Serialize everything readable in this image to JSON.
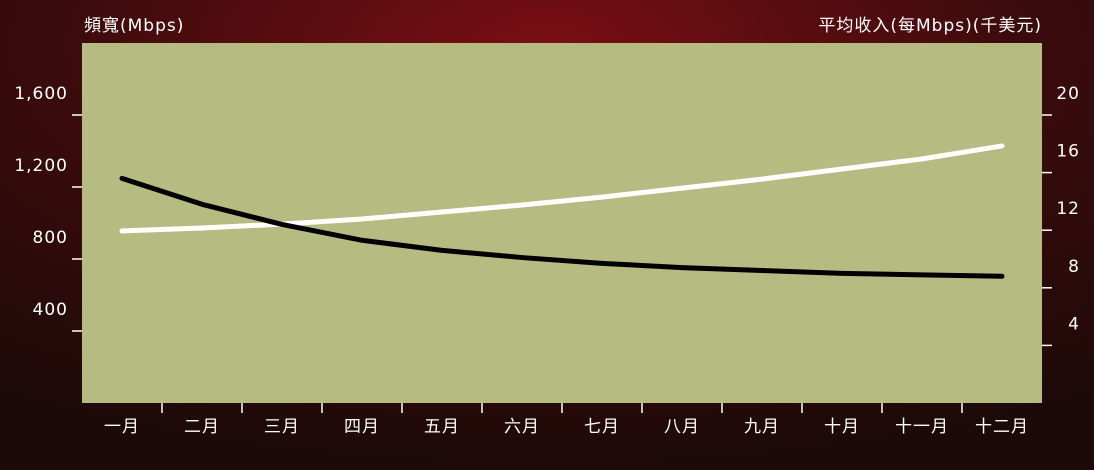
{
  "chart_data": {
    "type": "line",
    "y_label": "頻寬(Mbps)",
    "y2_label": "平均收入(每Mbps)(千美元)",
    "categories": [
      "一月",
      "二月",
      "三月",
      "四月",
      "五月",
      "六月",
      "七月",
      "八月",
      "九月",
      "十月",
      "十一月",
      "十二月"
    ],
    "series": [
      {
        "color": "#ffffff",
        "values": [
          956,
          972,
          994,
          1022,
          1061,
          1100,
          1144,
          1194,
          1244,
          1300,
          1356,
          1428
        ]
      },
      {
        "color": "#000000",
        "axis": "y2",
        "values": [
          15.6,
          13.8,
          12.4,
          11.3,
          10.6,
          10.1,
          9.7,
          9.4,
          9.2,
          9.0,
          8.9,
          8.8
        ]
      }
    ],
    "ylim": [
      0,
      2000
    ],
    "yticks": [
      400,
      800,
      {
        "value": 1200,
        "label": "1,200"
      },
      {
        "value": 1600,
        "label": "1,600"
      }
    ],
    "y2lim": [
      0,
      25
    ],
    "y2ticks": [
      4,
      8,
      12,
      16,
      20
    ],
    "plot_background": "#b6bb82"
  }
}
